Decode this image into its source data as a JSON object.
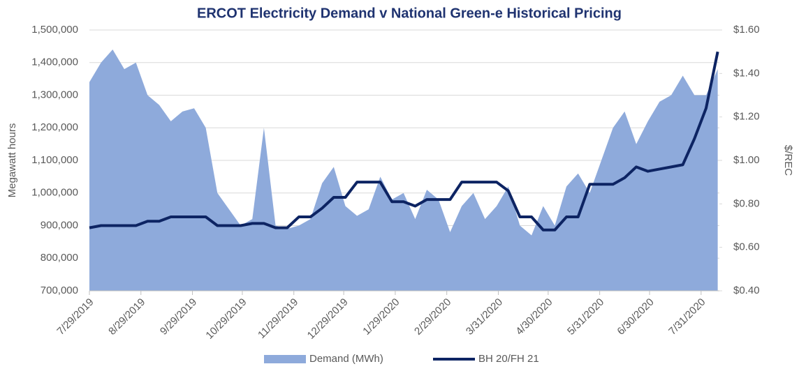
{
  "chart_data": {
    "type": "area-line",
    "title": "ERCOT Electricity Demand v National Green-e Historical Pricing",
    "ylabel": "Megawatt hours",
    "y2label": "$/REC",
    "x": [
      "7/29/2019",
      "8/5/2019",
      "8/12/2019",
      "8/19/2019",
      "8/26/2019",
      "9/2/2019",
      "9/9/2019",
      "9/16/2019",
      "9/23/2019",
      "9/30/2019",
      "10/7/2019",
      "10/14/2019",
      "10/21/2019",
      "10/28/2019",
      "11/4/2019",
      "11/11/2019",
      "11/18/2019",
      "11/25/2019",
      "12/2/2019",
      "12/9/2019",
      "12/16/2019",
      "12/23/2019",
      "12/30/2019",
      "1/6/2020",
      "1/13/2020",
      "1/20/2020",
      "1/27/2020",
      "2/3/2020",
      "2/10/2020",
      "2/17/2020",
      "2/24/2020",
      "3/2/2020",
      "3/9/2020",
      "3/16/2020",
      "3/23/2020",
      "3/30/2020",
      "4/6/2020",
      "4/13/2020",
      "4/20/2020",
      "4/27/2020",
      "5/4/2020",
      "5/11/2020",
      "5/18/2020",
      "5/25/2020",
      "6/1/2020",
      "6/8/2020",
      "6/15/2020",
      "6/22/2020",
      "6/29/2020",
      "7/6/2020",
      "7/13/2020",
      "7/20/2020",
      "7/27/2020",
      "8/3/2020",
      "8/10/2020"
    ],
    "series": [
      {
        "name": "Demand (MWh)",
        "color": "#8eaadb",
        "kind": "area",
        "values": [
          1340000,
          1400000,
          1440000,
          1380000,
          1400000,
          1300000,
          1270000,
          1220000,
          1250000,
          1260000,
          1200000,
          1000000,
          950000,
          900000,
          920000,
          1200000,
          900000,
          890000,
          900000,
          920000,
          1030000,
          1080000,
          960000,
          930000,
          950000,
          1050000,
          980000,
          1000000,
          920000,
          1010000,
          980000,
          880000,
          960000,
          1000000,
          920000,
          960000,
          1020000,
          900000,
          870000,
          960000,
          900000,
          1020000,
          1060000,
          1000000,
          1100000,
          1200000,
          1250000,
          1150000,
          1220000,
          1280000,
          1300000,
          1360000,
          1300000,
          1300000,
          1380000
        ]
      },
      {
        "name": "BH 20/FH 21",
        "color": "#0d2463",
        "kind": "line",
        "axis": "y2",
        "values": [
          0.69,
          0.7,
          0.7,
          0.7,
          0.7,
          0.72,
          0.72,
          0.74,
          0.74,
          0.74,
          0.74,
          0.7,
          0.7,
          0.7,
          0.71,
          0.71,
          0.69,
          0.69,
          0.74,
          0.74,
          0.78,
          0.83,
          0.83,
          0.9,
          0.9,
          0.9,
          0.81,
          0.81,
          0.79,
          0.82,
          0.82,
          0.82,
          0.9,
          0.9,
          0.9,
          0.9,
          0.86,
          0.74,
          0.74,
          0.68,
          0.68,
          0.74,
          0.74,
          0.89,
          0.89,
          0.89,
          0.92,
          0.97,
          0.95,
          0.96,
          0.97,
          0.98,
          1.1,
          1.24,
          1.5
        ]
      }
    ],
    "xlim": [
      "7/29/2019",
      "8/11/2020"
    ],
    "xticks": [
      "7/29/2019",
      "8/29/2019",
      "9/29/2019",
      "10/29/2019",
      "11/29/2019",
      "12/29/2019",
      "1/29/2020",
      "2/29/2020",
      "3/31/2020",
      "4/30/2020",
      "5/31/2020",
      "6/30/2020",
      "7/31/2020"
    ],
    "ylim": [
      700000,
      1500000
    ],
    "yticks": [
      {
        "value": 700000,
        "label": "700,000"
      },
      {
        "value": 800000,
        "label": "800,000"
      },
      {
        "value": 900000,
        "label": "900,000"
      },
      {
        "value": 1000000,
        "label": "1,000,000"
      },
      {
        "value": 1100000,
        "label": "1,100,000"
      },
      {
        "value": 1200000,
        "label": "1,200,000"
      },
      {
        "value": 1300000,
        "label": "1,300,000"
      },
      {
        "value": 1400000,
        "label": "1,400,000"
      },
      {
        "value": 1500000,
        "label": "1,500,000"
      }
    ],
    "y2lim": [
      0.4,
      1.6
    ],
    "y2ticks": [
      {
        "value": 0.4,
        "label": "$0.40"
      },
      {
        "value": 0.6,
        "label": "$0.60"
      },
      {
        "value": 0.8,
        "label": "$0.80"
      },
      {
        "value": 1.0,
        "label": "$1.00"
      },
      {
        "value": 1.2,
        "label": "$1.20"
      },
      {
        "value": 1.4,
        "label": "$1.40"
      },
      {
        "value": 1.6,
        "label": "$1.60"
      }
    ],
    "grid": true,
    "legend": "bottom"
  }
}
